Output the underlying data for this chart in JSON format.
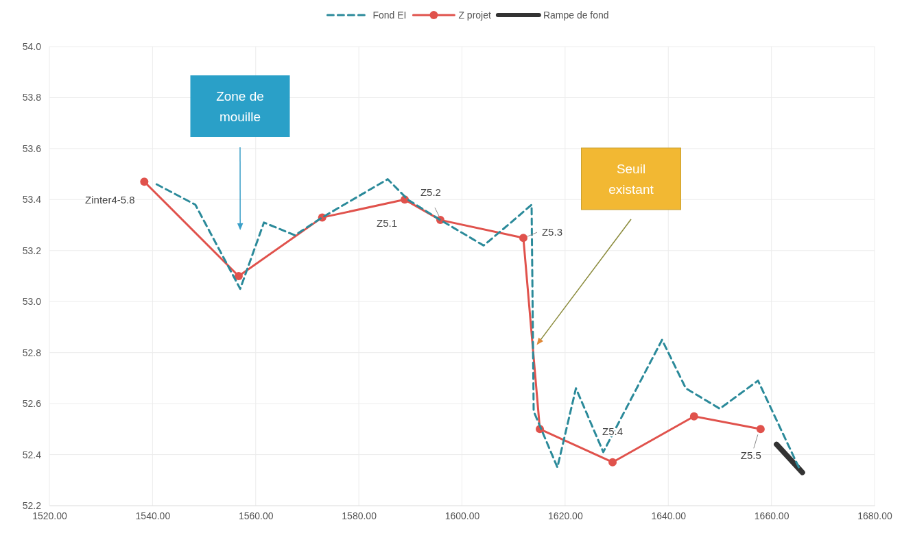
{
  "chart_data": {
    "type": "line",
    "xlim": [
      1520,
      1680
    ],
    "xticks": [
      {
        "value": 1520,
        "label": "1520.00"
      },
      {
        "value": 1540,
        "label": "1540.00"
      },
      {
        "value": 1560,
        "label": "1560.00"
      },
      {
        "value": 1580,
        "label": "1580.00"
      },
      {
        "value": 1600,
        "label": "1600.00"
      },
      {
        "value": 1620,
        "label": "1620.00"
      },
      {
        "value": 1640,
        "label": "1640.00"
      },
      {
        "value": 1660,
        "label": "1660.00"
      },
      {
        "value": 1680,
        "label": "1680.00"
      }
    ],
    "ylim": [
      52.2,
      54
    ],
    "yticks": [
      {
        "value": 52.2,
        "label": "52.2"
      },
      {
        "value": 52.4,
        "label": "52.4"
      },
      {
        "value": 52.6,
        "label": "52.6"
      },
      {
        "value": 52.8,
        "label": "52.8"
      },
      {
        "value": 53,
        "label": "53.0"
      },
      {
        "value": 53.2,
        "label": "53.2"
      },
      {
        "value": 53.4,
        "label": "53.4"
      },
      {
        "value": 53.6,
        "label": "53.6"
      },
      {
        "value": 53.8,
        "label": "53.8"
      },
      {
        "value": 54,
        "label": "54.0"
      }
    ],
    "grid": true,
    "legend": "top",
    "series": [
      {
        "name": "Fond EI",
        "color": "#2b8a9a",
        "line_style": "dashed",
        "marker": "none",
        "x": [
          1540.8,
          1548.3,
          1557,
          1561.6,
          1567.6,
          1572.9,
          1585.6,
          1589.5,
          1595.8,
          1604.2,
          1609.5,
          1613.5,
          1613.9,
          1618.5,
          1622.1,
          1627.4,
          1638.8,
          1643.4,
          1650,
          1657.4,
          1665.3
        ],
        "values": [
          53.46,
          53.38,
          53.05,
          53.31,
          53.26,
          53.33,
          53.48,
          53.4,
          53.32,
          53.22,
          53.31,
          53.38,
          52.57,
          52.35,
          52.66,
          52.41,
          52.85,
          52.66,
          52.58,
          52.69,
          52.35
        ]
      },
      {
        "name": "Z projet",
        "color": "#e0524c",
        "line_style": "solid",
        "marker": "circle",
        "x": [
          1538.4,
          1556.7,
          1572.9,
          1588.9,
          1595.8,
          1611.9,
          1615.1,
          1629.2,
          1645,
          1657.9
        ],
        "values": [
          53.47,
          53.1,
          53.33,
          53.4,
          53.32,
          53.25,
          52.5,
          52.37,
          52.55,
          52.5
        ]
      },
      {
        "name": "Rampe de fond",
        "color": "#333333",
        "line_style": "solid",
        "marker": "none",
        "x": [
          1661,
          1666
        ],
        "values": [
          52.44,
          52.33
        ]
      }
    ],
    "annotations": [
      {
        "text": "Zinter4-5.8",
        "x": 1538.4,
        "y": 53.47
      },
      {
        "text": "Z5.1",
        "x": 1588.9,
        "y": 53.4
      },
      {
        "text": "Z5.2",
        "x": 1595.8,
        "y": 53.32
      },
      {
        "text": "Z5.3",
        "x": 1611.9,
        "y": 53.25
      },
      {
        "text": "Z5.4",
        "x": 1629.2,
        "y": 52.37
      },
      {
        "text": "Z5.5",
        "x": 1657.9,
        "y": 52.5
      },
      "Zone de mouille",
      "Seuil existant"
    ]
  }
}
